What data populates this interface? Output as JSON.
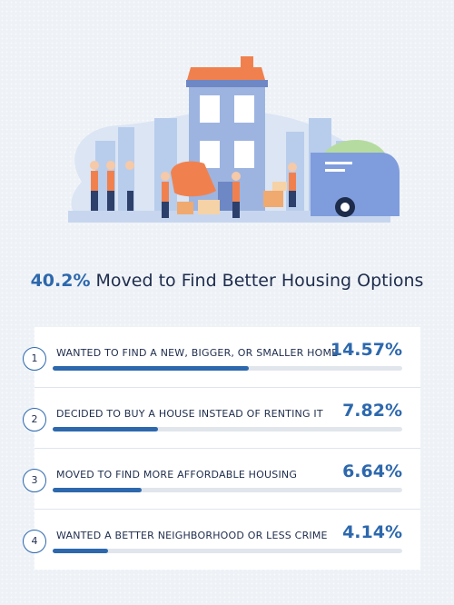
{
  "headline": {
    "highlight": "40.2%",
    "text": " Moved to Find Better Housing Options"
  },
  "colors": {
    "accent": "#2d68ad",
    "text_dark": "#1e2c4c",
    "track": "#e1e6ed",
    "background": "#eef2f7"
  },
  "illustration": {
    "description_icon": "moving-day-illustration"
  },
  "chart_data": {
    "type": "bar",
    "orientation": "horizontal",
    "categories": [
      "WANTED TO FIND A NEW, BIGGER, OR SMALLER HOME",
      "DECIDED TO BUY A HOUSE INSTEAD OF RENTING IT",
      "MOVED TO FIND MORE AFFORDABLE HOUSING",
      "WANTED A BETTER NEIGHBORHOOD OR LESS CRIME"
    ],
    "values": [
      14.57,
      7.82,
      6.64,
      4.14
    ],
    "value_labels": [
      "14.57%",
      "7.82%",
      "6.64%",
      "4.14%"
    ],
    "ranks": [
      "1",
      "2",
      "3",
      "4"
    ],
    "title": "40.2% Moved to Find Better Housing Options",
    "xlim": [
      0,
      26
    ]
  }
}
